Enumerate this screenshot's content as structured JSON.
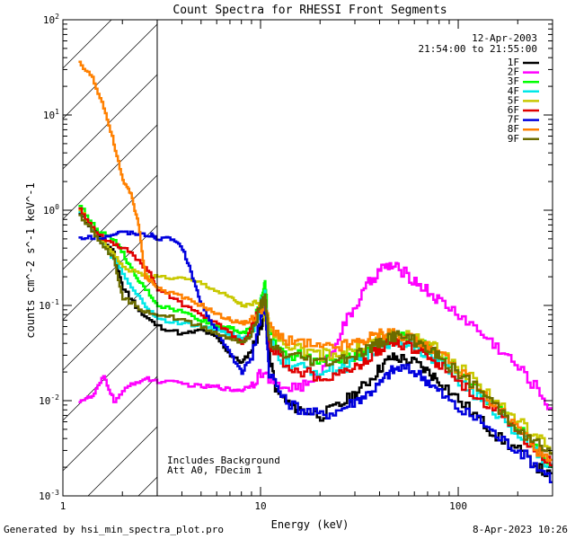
{
  "chart_data": {
    "type": "line",
    "title": "Count Spectra for RHESSI Front Segments",
    "xlabel": "Energy (keV)",
    "ylabel": "counts cm^-2 s^-1 keV^-1",
    "xscale": "log",
    "yscale": "log",
    "xlim": [
      1,
      300
    ],
    "ylim": [
      0.001,
      100
    ],
    "x_ticks": [
      "1",
      "10",
      "100"
    ],
    "y_ticks": [
      "10^-3",
      "10^-2",
      "10^-1",
      "10^0",
      "10^1",
      "10^2"
    ],
    "date": "12-Apr-2003",
    "time_range": "21:54:00 to 21:55:00",
    "excluded_region": {
      "x_max": 3.0,
      "style": "hatched"
    },
    "annotations": [
      "Includes Background",
      "Att A0, FDecim 1"
    ],
    "legend_position": "top-right",
    "series": [
      {
        "name": "1F",
        "color": "#000000",
        "points": [
          [
            1.2,
            0.9
          ],
          [
            1.5,
            0.55
          ],
          [
            1.8,
            0.35
          ],
          [
            2.0,
            0.15
          ],
          [
            2.5,
            0.08
          ],
          [
            3,
            0.06
          ],
          [
            4,
            0.05
          ],
          [
            5,
            0.055
          ],
          [
            6,
            0.045
          ],
          [
            7,
            0.03
          ],
          [
            8,
            0.025
          ],
          [
            9,
            0.035
          ],
          [
            10,
            0.06
          ],
          [
            10.5,
            0.09
          ],
          [
            11,
            0.03
          ],
          [
            12,
            0.012
          ],
          [
            14,
            0.009
          ],
          [
            16,
            0.008
          ],
          [
            20,
            0.007
          ],
          [
            25,
            0.009
          ],
          [
            30,
            0.012
          ],
          [
            35,
            0.016
          ],
          [
            40,
            0.022
          ],
          [
            45,
            0.028
          ],
          [
            50,
            0.028
          ],
          [
            60,
            0.025
          ],
          [
            70,
            0.02
          ],
          [
            80,
            0.016
          ],
          [
            100,
            0.01
          ],
          [
            130,
            0.006
          ],
          [
            160,
            0.004
          ],
          [
            200,
            0.003
          ],
          [
            250,
            0.002
          ],
          [
            300,
            0.0015
          ]
        ]
      },
      {
        "name": "2F",
        "color": "#ff00ff",
        "points": [
          [
            1.2,
            0.01
          ],
          [
            1.4,
            0.011
          ],
          [
            1.6,
            0.018
          ],
          [
            1.8,
            0.01
          ],
          [
            2.2,
            0.015
          ],
          [
            2.6,
            0.017
          ],
          [
            3,
            0.016
          ],
          [
            4,
            0.015
          ],
          [
            5,
            0.014
          ],
          [
            6,
            0.014
          ],
          [
            7,
            0.013
          ],
          [
            8,
            0.013
          ],
          [
            9,
            0.015
          ],
          [
            10,
            0.02
          ],
          [
            12,
            0.014
          ],
          [
            15,
            0.014
          ],
          [
            18,
            0.015
          ],
          [
            22,
            0.03
          ],
          [
            26,
            0.06
          ],
          [
            30,
            0.1
          ],
          [
            35,
            0.17
          ],
          [
            40,
            0.24
          ],
          [
            45,
            0.26
          ],
          [
            50,
            0.24
          ],
          [
            60,
            0.18
          ],
          [
            70,
            0.14
          ],
          [
            80,
            0.11
          ],
          [
            100,
            0.08
          ],
          [
            130,
            0.05
          ],
          [
            160,
            0.035
          ],
          [
            200,
            0.022
          ],
          [
            250,
            0.013
          ],
          [
            300,
            0.0075
          ]
        ]
      },
      {
        "name": "3F",
        "color": "#00ff00",
        "points": [
          [
            1.2,
            1.1
          ],
          [
            1.5,
            0.6
          ],
          [
            1.8,
            0.5
          ],
          [
            2.0,
            0.35
          ],
          [
            2.3,
            0.2
          ],
          [
            2.6,
            0.15
          ],
          [
            3,
            0.1
          ],
          [
            4,
            0.085
          ],
          [
            5,
            0.07
          ],
          [
            6,
            0.06
          ],
          [
            7,
            0.06
          ],
          [
            8,
            0.05
          ],
          [
            9,
            0.06
          ],
          [
            10,
            0.12
          ],
          [
            10.5,
            0.17
          ],
          [
            11,
            0.05
          ],
          [
            13,
            0.03
          ],
          [
            16,
            0.03
          ],
          [
            20,
            0.025
          ],
          [
            25,
            0.028
          ],
          [
            30,
            0.03
          ],
          [
            35,
            0.035
          ],
          [
            40,
            0.042
          ],
          [
            45,
            0.05
          ],
          [
            50,
            0.05
          ],
          [
            60,
            0.042
          ],
          [
            70,
            0.035
          ],
          [
            80,
            0.03
          ],
          [
            100,
            0.02
          ],
          [
            130,
            0.012
          ],
          [
            160,
            0.008
          ],
          [
            200,
            0.005
          ],
          [
            250,
            0.003
          ],
          [
            300,
            0.002
          ]
        ]
      },
      {
        "name": "4F",
        "color": "#00e8e8",
        "points": [
          [
            1.2,
            1.0
          ],
          [
            1.5,
            0.5
          ],
          [
            1.8,
            0.3
          ],
          [
            2.2,
            0.15
          ],
          [
            2.6,
            0.1
          ],
          [
            3,
            0.07
          ],
          [
            4,
            0.065
          ],
          [
            5,
            0.06
          ],
          [
            6,
            0.055
          ],
          [
            7,
            0.05
          ],
          [
            8,
            0.045
          ],
          [
            9,
            0.05
          ],
          [
            10,
            0.1
          ],
          [
            10.5,
            0.13
          ],
          [
            11,
            0.04
          ],
          [
            13,
            0.025
          ],
          [
            16,
            0.022
          ],
          [
            20,
            0.02
          ],
          [
            25,
            0.022
          ],
          [
            30,
            0.025
          ],
          [
            35,
            0.03
          ],
          [
            40,
            0.036
          ],
          [
            45,
            0.042
          ],
          [
            50,
            0.042
          ],
          [
            60,
            0.038
          ],
          [
            70,
            0.03
          ],
          [
            80,
            0.025
          ],
          [
            100,
            0.016
          ],
          [
            130,
            0.01
          ],
          [
            160,
            0.007
          ],
          [
            200,
            0.0045
          ],
          [
            250,
            0.0028
          ],
          [
            300,
            0.0018
          ]
        ]
      },
      {
        "name": "5F",
        "color": "#c8c800",
        "points": [
          [
            1.2,
            1.0
          ],
          [
            1.5,
            0.5
          ],
          [
            1.8,
            0.35
          ],
          [
            2.0,
            0.25
          ],
          [
            2.5,
            0.21
          ],
          [
            3,
            0.2
          ],
          [
            4,
            0.19
          ],
          [
            5,
            0.17
          ],
          [
            6,
            0.14
          ],
          [
            7,
            0.12
          ],
          [
            8,
            0.1
          ],
          [
            9,
            0.1
          ],
          [
            10,
            0.1
          ],
          [
            11,
            0.06
          ],
          [
            13,
            0.04
          ],
          [
            16,
            0.035
          ],
          [
            20,
            0.03
          ],
          [
            25,
            0.032
          ],
          [
            30,
            0.035
          ],
          [
            35,
            0.04
          ],
          [
            40,
            0.046
          ],
          [
            45,
            0.05
          ],
          [
            50,
            0.05
          ],
          [
            60,
            0.045
          ],
          [
            70,
            0.04
          ],
          [
            80,
            0.033
          ],
          [
            100,
            0.022
          ],
          [
            130,
            0.014
          ],
          [
            160,
            0.009
          ],
          [
            200,
            0.006
          ],
          [
            250,
            0.004
          ],
          [
            300,
            0.003
          ]
        ]
      },
      {
        "name": "6F",
        "color": "#e00000",
        "points": [
          [
            1.2,
            1.0
          ],
          [
            1.5,
            0.55
          ],
          [
            1.8,
            0.45
          ],
          [
            2.0,
            0.4
          ],
          [
            2.4,
            0.3
          ],
          [
            2.8,
            0.2
          ],
          [
            3,
            0.15
          ],
          [
            4,
            0.1
          ],
          [
            5,
            0.08
          ],
          [
            6,
            0.065
          ],
          [
            7,
            0.05
          ],
          [
            8,
            0.04
          ],
          [
            9,
            0.06
          ],
          [
            10,
            0.1
          ],
          [
            10.5,
            0.12
          ],
          [
            11,
            0.04
          ],
          [
            13,
            0.025
          ],
          [
            16,
            0.02
          ],
          [
            20,
            0.018
          ],
          [
            25,
            0.02
          ],
          [
            30,
            0.022
          ],
          [
            35,
            0.028
          ],
          [
            40,
            0.035
          ],
          [
            45,
            0.04
          ],
          [
            50,
            0.04
          ],
          [
            60,
            0.035
          ],
          [
            70,
            0.03
          ],
          [
            80,
            0.024
          ],
          [
            100,
            0.016
          ],
          [
            130,
            0.01
          ],
          [
            160,
            0.007
          ],
          [
            200,
            0.0045
          ],
          [
            250,
            0.003
          ],
          [
            300,
            0.002
          ]
        ]
      },
      {
        "name": "7F",
        "color": "#0000dd",
        "points": [
          [
            1.2,
            0.52
          ],
          [
            1.5,
            0.52
          ],
          [
            1.8,
            0.55
          ],
          [
            2.0,
            0.6
          ],
          [
            2.4,
            0.55
          ],
          [
            2.8,
            0.55
          ],
          [
            3,
            0.5
          ],
          [
            3.5,
            0.5
          ],
          [
            4,
            0.4
          ],
          [
            4.5,
            0.2
          ],
          [
            5,
            0.1
          ],
          [
            6,
            0.05
          ],
          [
            7,
            0.03
          ],
          [
            8,
            0.02
          ],
          [
            9,
            0.03
          ],
          [
            10,
            0.08
          ],
          [
            10.5,
            0.1
          ],
          [
            11,
            0.02
          ],
          [
            13,
            0.01
          ],
          [
            16,
            0.008
          ],
          [
            20,
            0.007
          ],
          [
            25,
            0.008
          ],
          [
            30,
            0.01
          ],
          [
            35,
            0.012
          ],
          [
            40,
            0.015
          ],
          [
            45,
            0.02
          ],
          [
            50,
            0.022
          ],
          [
            60,
            0.02
          ],
          [
            70,
            0.016
          ],
          [
            80,
            0.012
          ],
          [
            100,
            0.008
          ],
          [
            130,
            0.006
          ],
          [
            160,
            0.004
          ],
          [
            200,
            0.003
          ],
          [
            250,
            0.002
          ],
          [
            300,
            0.0015
          ]
        ]
      },
      {
        "name": "8F",
        "color": "#ff8000",
        "points": [
          [
            1.2,
            35
          ],
          [
            1.4,
            25
          ],
          [
            1.6,
            12
          ],
          [
            1.8,
            5
          ],
          [
            2.0,
            2
          ],
          [
            2.2,
            1.5
          ],
          [
            2.4,
            0.7
          ],
          [
            2.6,
            0.2
          ],
          [
            2.8,
            0.18
          ],
          [
            3,
            0.15
          ],
          [
            4,
            0.12
          ],
          [
            5,
            0.1
          ],
          [
            6,
            0.08
          ],
          [
            7,
            0.07
          ],
          [
            8,
            0.065
          ],
          [
            9,
            0.07
          ],
          [
            10,
            0.09
          ],
          [
            10.5,
            0.11
          ],
          [
            11,
            0.06
          ],
          [
            13,
            0.045
          ],
          [
            16,
            0.04
          ],
          [
            20,
            0.035
          ],
          [
            25,
            0.037
          ],
          [
            30,
            0.04
          ],
          [
            35,
            0.045
          ],
          [
            40,
            0.05
          ],
          [
            45,
            0.052
          ],
          [
            50,
            0.05
          ],
          [
            60,
            0.045
          ],
          [
            70,
            0.038
          ],
          [
            80,
            0.03
          ],
          [
            100,
            0.02
          ],
          [
            130,
            0.012
          ],
          [
            160,
            0.008
          ],
          [
            200,
            0.005
          ],
          [
            250,
            0.003
          ],
          [
            300,
            0.002
          ]
        ]
      },
      {
        "name": "9F",
        "color": "#6b6b00",
        "points": [
          [
            1.2,
            0.9
          ],
          [
            1.5,
            0.5
          ],
          [
            1.8,
            0.3
          ],
          [
            2.0,
            0.12
          ],
          [
            2.5,
            0.09
          ],
          [
            3,
            0.08
          ],
          [
            4,
            0.07
          ],
          [
            5,
            0.06
          ],
          [
            6,
            0.05
          ],
          [
            7,
            0.045
          ],
          [
            8,
            0.04
          ],
          [
            9,
            0.05
          ],
          [
            10,
            0.1
          ],
          [
            10.5,
            0.12
          ],
          [
            11,
            0.04
          ],
          [
            13,
            0.03
          ],
          [
            16,
            0.028
          ],
          [
            20,
            0.025
          ],
          [
            25,
            0.027
          ],
          [
            30,
            0.03
          ],
          [
            35,
            0.035
          ],
          [
            40,
            0.04
          ],
          [
            45,
            0.047
          ],
          [
            50,
            0.047
          ],
          [
            60,
            0.042
          ],
          [
            70,
            0.035
          ],
          [
            80,
            0.028
          ],
          [
            100,
            0.019
          ],
          [
            130,
            0.012
          ],
          [
            160,
            0.008
          ],
          [
            200,
            0.005
          ],
          [
            250,
            0.0035
          ],
          [
            300,
            0.0025
          ]
        ]
      }
    ]
  },
  "footer": {
    "generated_by": "Generated by hsi_min_spectra_plot.pro",
    "timestamp": "8-Apr-2023 10:26"
  }
}
